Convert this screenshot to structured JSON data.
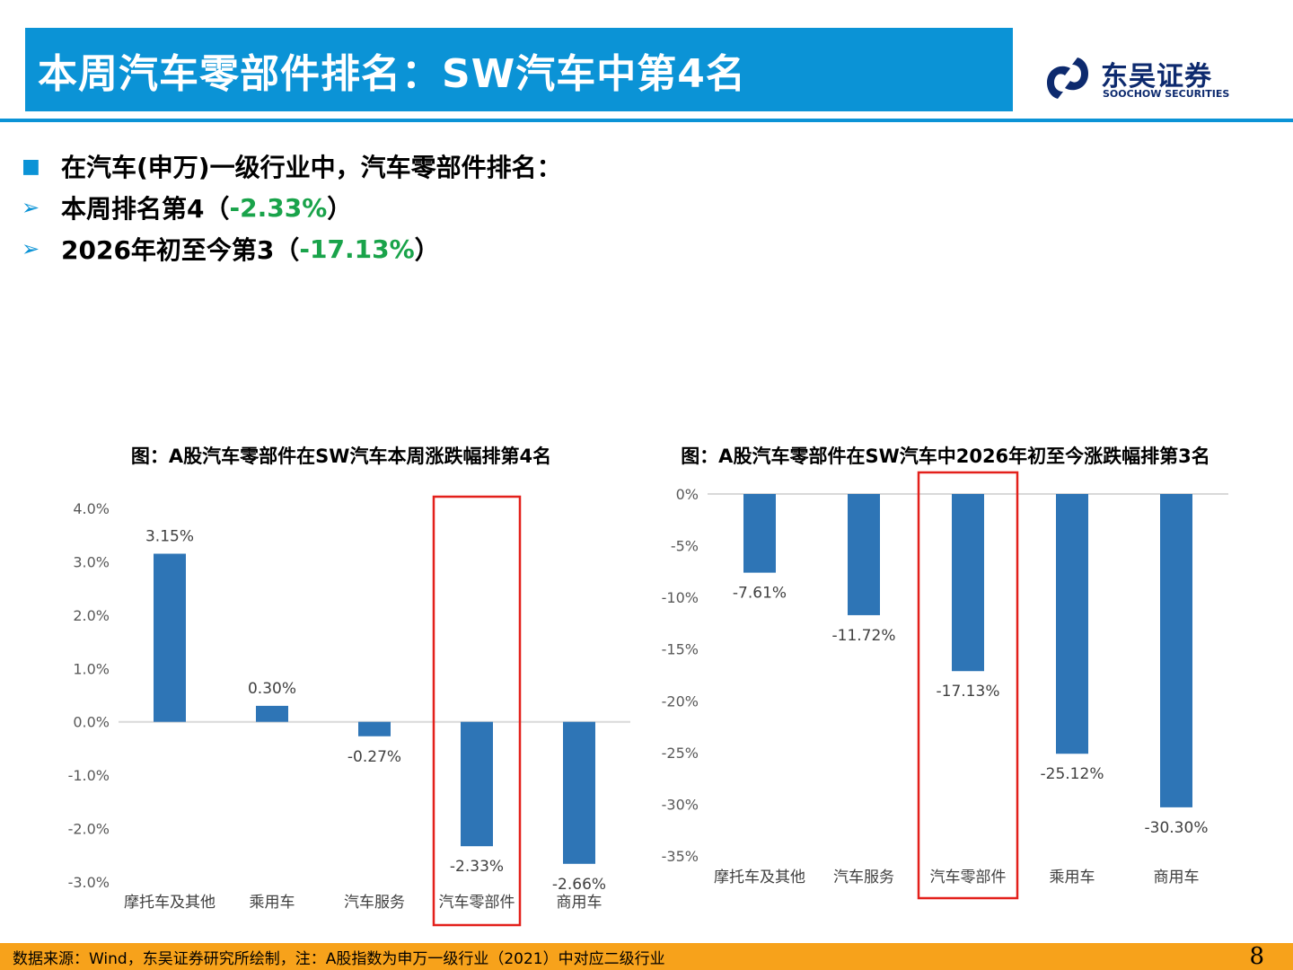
{
  "header": {
    "title": "本周汽车零部件排名：SW汽车中第4名",
    "logo_cn": "东吴证券",
    "logo_en": "SOOCHOW SECURITIES"
  },
  "bullets": {
    "main": "在汽车(申万)一级行业中，汽车零部件排名：",
    "week_prefix": "本周排名第4（",
    "week_value": "-2.33%",
    "week_suffix": "）",
    "ytd_prefix": "2026年初至今第3（",
    "ytd_value": "-17.13%",
    "ytd_suffix": "）"
  },
  "colors": {
    "accent": "#0b93d6",
    "bar": "#2e75b6",
    "highlight": "#e3201b",
    "green": "#19a34a",
    "footer": "#f7a21b"
  },
  "chart_data": [
    {
      "type": "bar",
      "title": "图：A股汽车零部件在SW汽车本周涨跌幅排第4名",
      "categories": [
        "摩托车及其他",
        "乘用车",
        "汽车服务",
        "汽车零部件",
        "商用车"
      ],
      "values": [
        3.15,
        0.3,
        -0.27,
        -2.33,
        -2.66
      ],
      "data_labels": [
        "3.15%",
        "0.30%",
        "-0.27%",
        "-2.33%",
        "-2.66%"
      ],
      "ylim": [
        -3.0,
        4.0
      ],
      "yticks": [
        4.0,
        3.0,
        2.0,
        1.0,
        0.0,
        -1.0,
        -2.0,
        -3.0
      ],
      "ytick_labels": [
        "4.0%",
        "3.0%",
        "2.0%",
        "1.0%",
        "0.0%",
        "-1.0%",
        "-2.0%",
        "-3.0%"
      ],
      "highlight_index": 3,
      "xlabel": "",
      "ylabel": ""
    },
    {
      "type": "bar",
      "title": "图：A股汽车零部件在SW汽车中2026年初至今涨跌幅排第3名",
      "categories": [
        "摩托车及其他",
        "汽车服务",
        "汽车零部件",
        "乘用车",
        "商用车"
      ],
      "values": [
        -7.61,
        -11.72,
        -17.13,
        -25.12,
        -30.3
      ],
      "data_labels": [
        "-7.61%",
        "-11.72%",
        "-17.13%",
        "-25.12%",
        "-30.30%"
      ],
      "ylim": [
        -35,
        0
      ],
      "yticks": [
        0,
        -5,
        -10,
        -15,
        -20,
        -25,
        -30,
        -35
      ],
      "ytick_labels": [
        "0%",
        "-5%",
        "-10%",
        "-15%",
        "-20%",
        "-25%",
        "-30%",
        "-35%"
      ],
      "highlight_index": 2,
      "xlabel": "",
      "ylabel": ""
    }
  ],
  "footer": {
    "source": "数据来源：Wind，东吴证券研究所绘制，注：A股指数为申万一级行业（2021）中对应二级行业",
    "page": "8"
  }
}
